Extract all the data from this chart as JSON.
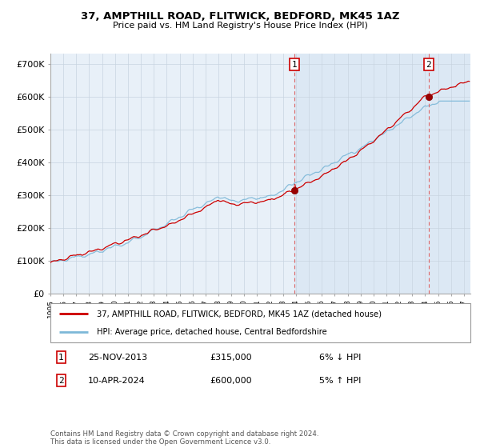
{
  "title1": "37, AMPTHILL ROAD, FLITWICK, BEDFORD, MK45 1AZ",
  "title2": "Price paid vs. HM Land Registry's House Price Index (HPI)",
  "ylabel_ticks": [
    "£0",
    "£100K",
    "£200K",
    "£300K",
    "£400K",
    "£500K",
    "£600K",
    "£700K"
  ],
  "ytick_vals": [
    0,
    100000,
    200000,
    300000,
    400000,
    500000,
    600000,
    700000
  ],
  "ylim": [
    0,
    730000
  ],
  "xlim_start": 1995.0,
  "xlim_end": 2027.5,
  "sale1_date": 2013.9,
  "sale1_price": 315000,
  "sale2_date": 2024.27,
  "sale2_price": 600000,
  "legend1": "37, AMPTHILL ROAD, FLITWICK, BEDFORD, MK45 1AZ (detached house)",
  "legend2": "HPI: Average price, detached house, Central Bedfordshire",
  "ann1_date_str": "25-NOV-2013",
  "ann1_price_str": "£315,000",
  "ann1_hpi_str": "6% ↓ HPI",
  "ann2_date_str": "10-APR-2024",
  "ann2_price_str": "£600,000",
  "ann2_hpi_str": "5% ↑ HPI",
  "footer": "Contains HM Land Registry data © Crown copyright and database right 2024.\nThis data is licensed under the Open Government Licence v3.0.",
  "hpi_color": "#7db8d8",
  "price_color": "#cc0000",
  "bg_color": "#e8f0f8",
  "grid_color": "#c8d4e0",
  "shade_color": "#dce8f4"
}
